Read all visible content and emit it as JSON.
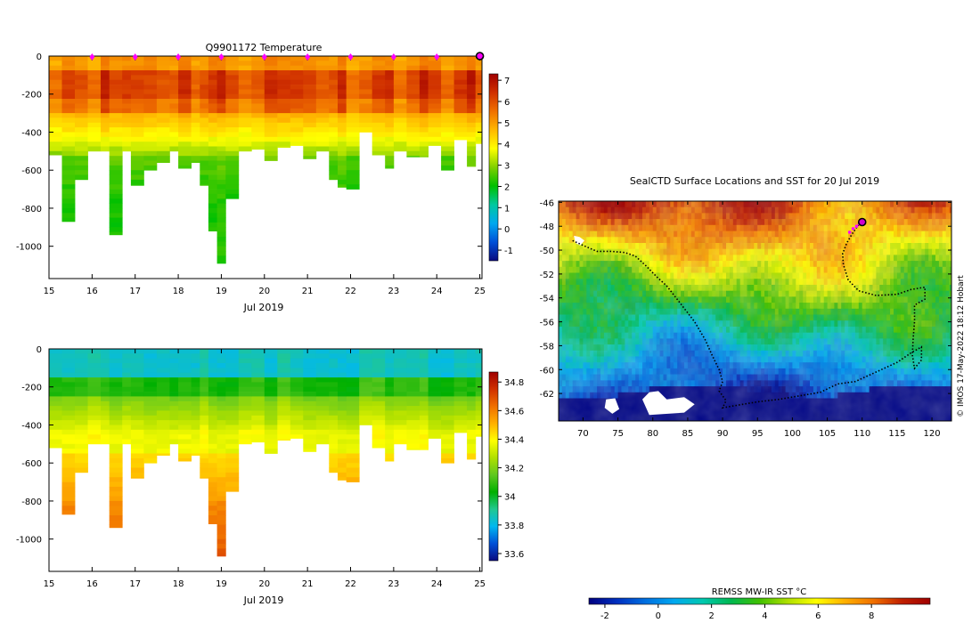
{
  "colors": {
    "temperature_scale": [
      "#0a0a80",
      "#0050d8",
      "#00a8f0",
      "#00c8a0",
      "#00c000",
      "#80d000",
      "#ffff00",
      "#ffb800",
      "#f07000",
      "#d03000",
      "#a00000"
    ],
    "salinity_scale": [
      "#0a0a80",
      "#0050d8",
      "#00b8f0",
      "#20c890",
      "#00b000",
      "#60c820",
      "#b0e000",
      "#ffff00",
      "#ffb000",
      "#f07000",
      "#d03000",
      "#a00000"
    ],
    "sst_scale": [
      "#000080",
      "#0030c0",
      "#0070e0",
      "#00a8f0",
      "#00c8b0",
      "#00b850",
      "#40c000",
      "#b0e000",
      "#ffff00",
      "#ffb000",
      "#f07000",
      "#c02000",
      "#a00000"
    ],
    "profile_marker": "#ff00ff",
    "track": "#000000"
  },
  "chart_data": [
    {
      "id": "temperature-section",
      "type": "heatmap",
      "title": "Q9901172  Temperature",
      "xlabel": "Jul 2019",
      "x_ticks": [
        "15",
        "16",
        "17",
        "18",
        "19",
        "20",
        "21",
        "22",
        "23",
        "24",
        "25"
      ],
      "y_ticks": [
        "0",
        "-200",
        "-400",
        "-600",
        "-800",
        "-1000"
      ],
      "xlim": [
        15,
        25.05
      ],
      "ylim": [
        -1170,
        0
      ],
      "colorbar": {
        "ticks": [
          "7",
          "6",
          "5",
          "4",
          "3",
          "2",
          "1",
          "0",
          "-1"
        ],
        "range": [
          -1.5,
          7.3
        ]
      },
      "daily_markers_x": [
        16,
        17,
        18,
        19,
        20,
        21,
        22,
        23,
        24
      ],
      "current_position_x": 25,
      "profiles": [
        {
          "x": 15.0,
          "max_depth": -520
        },
        {
          "x": 15.3,
          "max_depth": -870
        },
        {
          "x": 15.6,
          "max_depth": -650
        },
        {
          "x": 15.9,
          "max_depth": -500
        },
        {
          "x": 16.2,
          "max_depth": -500
        },
        {
          "x": 16.4,
          "max_depth": -940
        },
        {
          "x": 16.7,
          "max_depth": -500
        },
        {
          "x": 16.9,
          "max_depth": -680
        },
        {
          "x": 17.2,
          "max_depth": -600
        },
        {
          "x": 17.5,
          "max_depth": -560
        },
        {
          "x": 17.8,
          "max_depth": -500
        },
        {
          "x": 18.0,
          "max_depth": -590
        },
        {
          "x": 18.3,
          "max_depth": -560
        },
        {
          "x": 18.5,
          "max_depth": -680
        },
        {
          "x": 18.7,
          "max_depth": -920
        },
        {
          "x": 18.9,
          "max_depth": -1090
        },
        {
          "x": 19.1,
          "max_depth": -750
        },
        {
          "x": 19.4,
          "max_depth": -500
        },
        {
          "x": 19.7,
          "max_depth": -490
        },
        {
          "x": 20.0,
          "max_depth": -550
        },
        {
          "x": 20.3,
          "max_depth": -480
        },
        {
          "x": 20.6,
          "max_depth": -470
        },
        {
          "x": 20.9,
          "max_depth": -540
        },
        {
          "x": 21.2,
          "max_depth": -500
        },
        {
          "x": 21.5,
          "max_depth": -650
        },
        {
          "x": 21.7,
          "max_depth": -690
        },
        {
          "x": 21.9,
          "max_depth": -700
        },
        {
          "x": 22.2,
          "max_depth": -400
        },
        {
          "x": 22.5,
          "max_depth": -520
        },
        {
          "x": 22.8,
          "max_depth": -590
        },
        {
          "x": 23.0,
          "max_depth": -500
        },
        {
          "x": 23.3,
          "max_depth": -530
        },
        {
          "x": 23.6,
          "max_depth": -530
        },
        {
          "x": 23.8,
          "max_depth": -470
        },
        {
          "x": 24.1,
          "max_depth": -600
        },
        {
          "x": 24.4,
          "max_depth": -440
        },
        {
          "x": 24.7,
          "max_depth": -580
        },
        {
          "x": 24.9,
          "max_depth": -460
        }
      ]
    },
    {
      "id": "salinity-section",
      "type": "heatmap",
      "title": "",
      "xlabel": "Jul 2019",
      "x_ticks": [
        "15",
        "16",
        "17",
        "18",
        "19",
        "20",
        "21",
        "22",
        "23",
        "24",
        "25"
      ],
      "y_ticks": [
        "0",
        "-200",
        "-400",
        "-600",
        "-800",
        "-1000"
      ],
      "xlim": [
        15,
        25.05
      ],
      "ylim": [
        -1170,
        0
      ],
      "colorbar": {
        "ticks": [
          "34.8",
          "34.6",
          "34.4",
          "34.2",
          "34",
          "33.8",
          "33.6"
        ],
        "range": [
          33.55,
          34.87
        ]
      },
      "profiles": [
        {
          "x": 15.0,
          "max_depth": -520
        },
        {
          "x": 15.3,
          "max_depth": -870
        },
        {
          "x": 15.6,
          "max_depth": -650
        },
        {
          "x": 15.9,
          "max_depth": -500
        },
        {
          "x": 16.2,
          "max_depth": -500
        },
        {
          "x": 16.4,
          "max_depth": -940
        },
        {
          "x": 16.7,
          "max_depth": -500
        },
        {
          "x": 16.9,
          "max_depth": -680
        },
        {
          "x": 17.2,
          "max_depth": -600
        },
        {
          "x": 17.5,
          "max_depth": -560
        },
        {
          "x": 17.8,
          "max_depth": -500
        },
        {
          "x": 18.0,
          "max_depth": -590
        },
        {
          "x": 18.3,
          "max_depth": -560
        },
        {
          "x": 18.5,
          "max_depth": -680
        },
        {
          "x": 18.7,
          "max_depth": -920
        },
        {
          "x": 18.9,
          "max_depth": -1090
        },
        {
          "x": 19.1,
          "max_depth": -750
        },
        {
          "x": 19.4,
          "max_depth": -500
        },
        {
          "x": 19.7,
          "max_depth": -490
        },
        {
          "x": 20.0,
          "max_depth": -550
        },
        {
          "x": 20.3,
          "max_depth": -480
        },
        {
          "x": 20.6,
          "max_depth": -470
        },
        {
          "x": 20.9,
          "max_depth": -540
        },
        {
          "x": 21.2,
          "max_depth": -500
        },
        {
          "x": 21.5,
          "max_depth": -650
        },
        {
          "x": 21.7,
          "max_depth": -690
        },
        {
          "x": 21.9,
          "max_depth": -700
        },
        {
          "x": 22.2,
          "max_depth": -400
        },
        {
          "x": 22.5,
          "max_depth": -520
        },
        {
          "x": 22.8,
          "max_depth": -590
        },
        {
          "x": 23.0,
          "max_depth": -500
        },
        {
          "x": 23.3,
          "max_depth": -530
        },
        {
          "x": 23.6,
          "max_depth": -530
        },
        {
          "x": 23.8,
          "max_depth": -470
        },
        {
          "x": 24.1,
          "max_depth": -600
        },
        {
          "x": 24.4,
          "max_depth": -440
        },
        {
          "x": 24.7,
          "max_depth": -580
        },
        {
          "x": 24.9,
          "max_depth": -460
        }
      ]
    },
    {
      "id": "sst-map",
      "type": "heatmap",
      "title": "SealCTD Surface Locations and SST for 20 Jul 2019",
      "xlabel": "",
      "x_ticks": [
        "70",
        "75",
        "80",
        "85",
        "90",
        "95",
        "100",
        "105",
        "110",
        "115",
        "120"
      ],
      "y_ticks": [
        "-46",
        "-48",
        "-50",
        "-52",
        "-54",
        "-56",
        "-58",
        "-60",
        "-62"
      ],
      "xlim": [
        66.5,
        122.8
      ],
      "ylim": [
        -64.3,
        -45.9
      ],
      "colorbar": {
        "label": "REMSS MW-IR SST °C",
        "ticks": [
          "-2",
          "0",
          "2",
          "4",
          "6",
          "8"
        ],
        "range": [
          -2.6,
          10.2
        ]
      },
      "track_lon_lat": [
        [
          68.5,
          -49.2
        ],
        [
          70,
          -49.6
        ],
        [
          72,
          -50.1
        ],
        [
          74,
          -50.1
        ],
        [
          76,
          -50.2
        ],
        [
          77.5,
          -50.5
        ],
        [
          79,
          -51.3
        ],
        [
          80.5,
          -52.2
        ],
        [
          82,
          -53
        ],
        [
          84,
          -54.5
        ],
        [
          86,
          -56
        ],
        [
          87.5,
          -57.5
        ],
        [
          88.5,
          -58.8
        ],
        [
          89.5,
          -60
        ],
        [
          90,
          -61
        ],
        [
          89.5,
          -61.8
        ],
        [
          90.5,
          -62.6
        ],
        [
          90,
          -63.2
        ],
        [
          92,
          -63
        ],
        [
          95,
          -62.7
        ],
        [
          98,
          -62.5
        ],
        [
          101,
          -62.2
        ],
        [
          104,
          -61.9
        ],
        [
          106.5,
          -61.2
        ],
        [
          109,
          -61
        ],
        [
          112,
          -60.2
        ],
        [
          115,
          -59.4
        ],
        [
          117,
          -58.6
        ],
        [
          118.5,
          -58.1
        ],
        [
          118.5,
          -59.2
        ],
        [
          117.5,
          -59.9
        ],
        [
          117.2,
          -58.8
        ],
        [
          117.3,
          -57.5
        ],
        [
          117.5,
          -56
        ],
        [
          117.5,
          -54.6
        ],
        [
          119,
          -54.1
        ],
        [
          119,
          -53.1
        ],
        [
          117,
          -53.3
        ],
        [
          115,
          -53.7
        ],
        [
          112,
          -53.8
        ],
        [
          109.5,
          -53.4
        ],
        [
          108,
          -52.5
        ],
        [
          107.3,
          -51.2
        ],
        [
          107.2,
          -50.3
        ],
        [
          107.8,
          -49.4
        ],
        [
          108.5,
          -48.7
        ],
        [
          109.2,
          -48.1
        ],
        [
          109.8,
          -47.7
        ]
      ],
      "recent_surface_points_lon_lat": [
        [
          108.2,
          -48.5
        ],
        [
          108.7,
          -48.2
        ],
        [
          109.2,
          -48.0
        ],
        [
          109.6,
          -47.8
        ]
      ],
      "current_position_lon_lat": [
        110,
        -47.65
      ],
      "land_masks_lon_lat": [
        [
          [
            73.3,
            -62.5
          ],
          [
            74.6,
            -62.4
          ],
          [
            75.2,
            -63.3
          ],
          [
            74.2,
            -63.7
          ],
          [
            73.1,
            -63.2
          ]
        ],
        [
          [
            78.5,
            -62.5
          ],
          [
            79.5,
            -61.9
          ],
          [
            80.8,
            -61.8
          ],
          [
            82,
            -62.5
          ],
          [
            84.5,
            -62.3
          ],
          [
            86,
            -62.9
          ],
          [
            84.5,
            -63.6
          ],
          [
            79.5,
            -63.8
          ]
        ],
        [
          [
            68.7,
            -48.8
          ],
          [
            69.5,
            -48.9
          ],
          [
            70.2,
            -49.2
          ],
          [
            69.6,
            -49.6
          ],
          [
            68.9,
            -49.4
          ]
        ]
      ]
    }
  ],
  "footer": {
    "credit": "© IMOS 17-May-2022 18:12 Hobart"
  }
}
